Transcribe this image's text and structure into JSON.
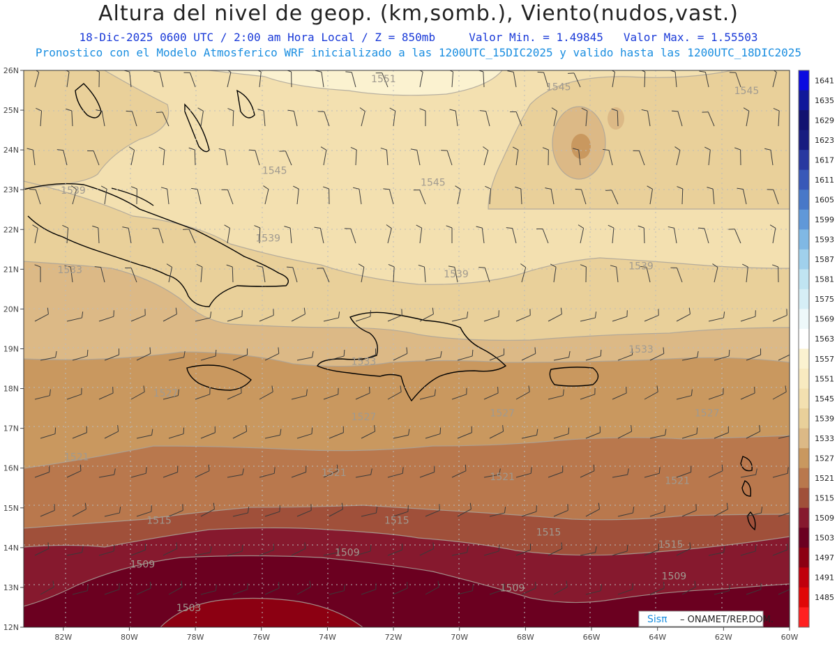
{
  "header": {
    "title": "Altura del nivel de geop. (km,somb.), Viento(nudos,vast.)",
    "subtitle_time": "18-Dic-2025   0600 UTC / 2:00 am Hora Local / Z = 850mb",
    "subtitle_min": "Valor Min. = 1.49845",
    "subtitle_max": "Valor Max. = 1.55503",
    "subtitle_model": "Pronostico con el Modelo Atmosferico WRF inicializado a las 1200UTC_15DIC2025 y valido hasta las  1200UTC_18DIC2025"
  },
  "axes": {
    "lat_labels": [
      "26N",
      "25N",
      "24N",
      "23N",
      "22N",
      "21N",
      "20N",
      "19N",
      "18N",
      "17N",
      "16N",
      "15N",
      "14N",
      "13N",
      "12N"
    ],
    "lon_labels": [
      "82W",
      "80W",
      "78W",
      "76W",
      "74W",
      "72W",
      "70W",
      "68W",
      "66W",
      "64W",
      "62W",
      "60W"
    ],
    "lat_range": [
      12,
      26
    ],
    "lon_range": [
      -83.2,
      -60
    ]
  },
  "colorbar": {
    "levels": [
      "1641",
      "1635",
      "1629",
      "1623",
      "1617",
      "1611",
      "1605",
      "1599",
      "1593",
      "1587",
      "1581",
      "1575",
      "1569",
      "1563",
      "1557",
      "1551",
      "1545",
      "1539",
      "1533",
      "1527",
      "1521",
      "1515",
      "1509",
      "1503",
      "1497",
      "1491",
      "1485"
    ],
    "colors": [
      "#0a0ae0",
      "#10189a",
      "#121370",
      "#181c80",
      "#2838a0",
      "#3858b8",
      "#4878c8",
      "#6098d8",
      "#80b8e4",
      "#a0d0ec",
      "#c0e4f2",
      "#d6eef6",
      "#eef8fa",
      "#ffffff",
      "#fbf2d0",
      "#f8eac0",
      "#f3e0b0",
      "#e9d09a",
      "#dcb986",
      "#c9985f",
      "#b9784d",
      "#a0503a",
      "#86192e",
      "#6b0020",
      "#8c0012",
      "#c0000c",
      "#e00808",
      "#ff2020"
    ]
  },
  "contour_labels": [
    {
      "text": "1551",
      "lon": -72.3,
      "lat": 25.7
    },
    {
      "text": "1545",
      "lon": -67.0,
      "lat": 25.5
    },
    {
      "text": "1545",
      "lon": -61.3,
      "lat": 25.4
    },
    {
      "text": "1545",
      "lon": -75.6,
      "lat": 23.4
    },
    {
      "text": "1545",
      "lon": -70.8,
      "lat": 23.1
    },
    {
      "text": "1539",
      "lon": -81.7,
      "lat": 22.9
    },
    {
      "text": "1539",
      "lon": -75.8,
      "lat": 21.7
    },
    {
      "text": "1539",
      "lon": -70.1,
      "lat": 20.8
    },
    {
      "text": "1539",
      "lon": -64.5,
      "lat": 21.0
    },
    {
      "text": "1533",
      "lon": -81.8,
      "lat": 20.9
    },
    {
      "text": "1533",
      "lon": -72.9,
      "lat": 18.6
    },
    {
      "text": "1533",
      "lon": -64.5,
      "lat": 18.9
    },
    {
      "text": "1527",
      "lon": -78.9,
      "lat": 17.8
    },
    {
      "text": "1527",
      "lon": -72.9,
      "lat": 17.2
    },
    {
      "text": "1527",
      "lon": -68.7,
      "lat": 17.3
    },
    {
      "text": "1527",
      "lon": -62.5,
      "lat": 17.3
    },
    {
      "text": "1521",
      "lon": -81.6,
      "lat": 16.2
    },
    {
      "text": "1521",
      "lon": -73.8,
      "lat": 15.8
    },
    {
      "text": "1521",
      "lon": -68.7,
      "lat": 15.7
    },
    {
      "text": "1521",
      "lon": -63.4,
      "lat": 15.6
    },
    {
      "text": "1515",
      "lon": -79.1,
      "lat": 14.6
    },
    {
      "text": "1515",
      "lon": -71.9,
      "lat": 14.6
    },
    {
      "text": "1515",
      "lon": -67.3,
      "lat": 14.3
    },
    {
      "text": "1515",
      "lon": -63.6,
      "lat": 14.0
    },
    {
      "text": "1509",
      "lon": -79.6,
      "lat": 13.5
    },
    {
      "text": "1509",
      "lon": -73.4,
      "lat": 13.8
    },
    {
      "text": "1509",
      "lon": -68.4,
      "lat": 12.9
    },
    {
      "text": "1509",
      "lon": -63.5,
      "lat": 13.2
    },
    {
      "text": "1503",
      "lon": -78.2,
      "lat": 12.4
    }
  ],
  "footer": {
    "logo_text": "Sisπ",
    "credit": "– ONAMET/REP.DOM."
  }
}
